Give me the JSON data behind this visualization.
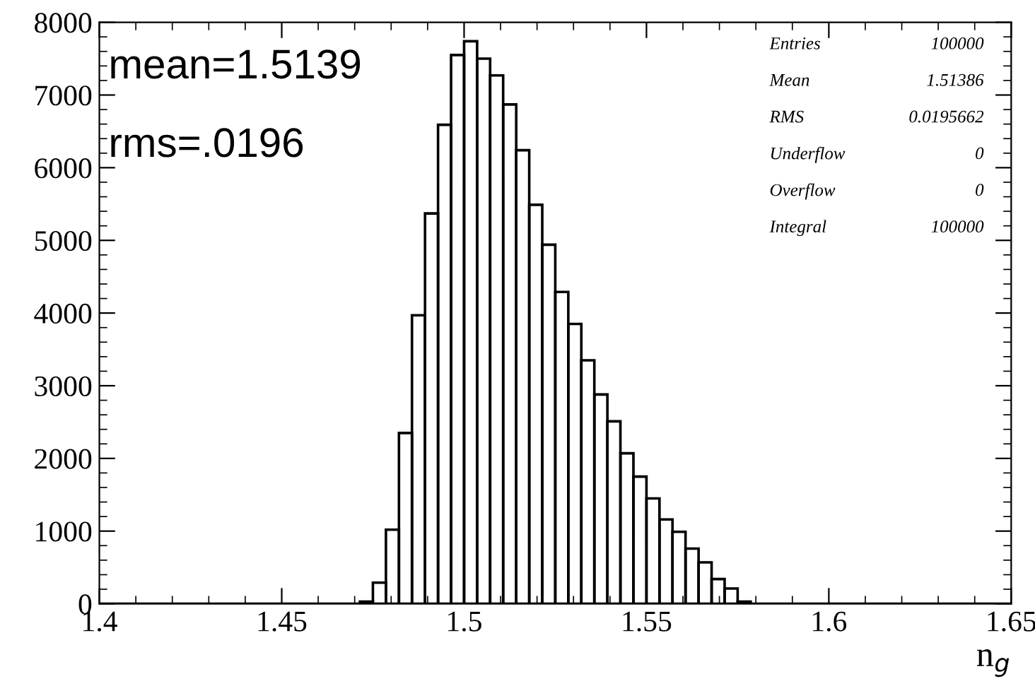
{
  "chart_data": {
    "type": "histogram",
    "xlabel": "n$_{g}$",
    "bins": [
      1.4,
      1.40357,
      1.40714,
      1.41071,
      1.41429,
      1.41786,
      1.42143,
      1.425,
      1.42857,
      1.43214,
      1.43571,
      1.43929,
      1.44286,
      1.44643,
      1.45,
      1.45357,
      1.45714,
      1.46071,
      1.46429,
      1.46786,
      1.47143,
      1.475,
      1.47857,
      1.48214,
      1.48571,
      1.48929,
      1.49286,
      1.49643,
      1.5,
      1.50357,
      1.50714,
      1.51071,
      1.51429,
      1.51786,
      1.52143,
      1.525,
      1.52857,
      1.53214,
      1.53571,
      1.53929,
      1.54286,
      1.54643,
      1.55,
      1.55357,
      1.55714,
      1.56071,
      1.56429,
      1.56786,
      1.57143,
      1.575,
      1.57857,
      1.58214,
      1.58571,
      1.58929,
      1.59286,
      1.59643,
      1.6,
      1.60357,
      1.60714,
      1.61071,
      1.61429,
      1.61786,
      1.62143,
      1.625,
      1.62857,
      1.63214,
      1.63571,
      1.63929,
      1.64286,
      1.64643,
      1.65
    ],
    "values": [
      0,
      0,
      0,
      0,
      0,
      0,
      0,
      0,
      0,
      0,
      0,
      0,
      0,
      0,
      0,
      0,
      0,
      0,
      0,
      0,
      30,
      290,
      1020,
      2350,
      3970,
      5370,
      6590,
      7550,
      7740,
      7500,
      7270,
      6870,
      6240,
      5490,
      4940,
      4290,
      3850,
      3350,
      2880,
      2510,
      2070,
      1750,
      1450,
      1160,
      990,
      760,
      570,
      340,
      210,
      30,
      0,
      0,
      0,
      0,
      0,
      0,
      0,
      0,
      0,
      0,
      0,
      0,
      0,
      0,
      0,
      0,
      0,
      0,
      0,
      0
    ],
    "color": "#000000",
    "xlim": [
      1.4,
      1.65
    ],
    "xticks": [
      1.4,
      1.45,
      1.5,
      1.55,
      1.6,
      1.65
    ],
    "ylim": [
      0,
      8000
    ],
    "yticks": [
      0,
      1000,
      2000,
      3000,
      4000,
      5000,
      6000,
      7000,
      8000
    ],
    "grid": false,
    "legend": false,
    "annotations": [
      "mean=1.5139",
      "rms=.0196",
      "Entries",
      "100000",
      "Mean",
      "1.51386",
      "RMS",
      "0.0195662",
      "Underflow",
      "0",
      "Overflow",
      "0",
      "Integral",
      "100000"
    ]
  }
}
